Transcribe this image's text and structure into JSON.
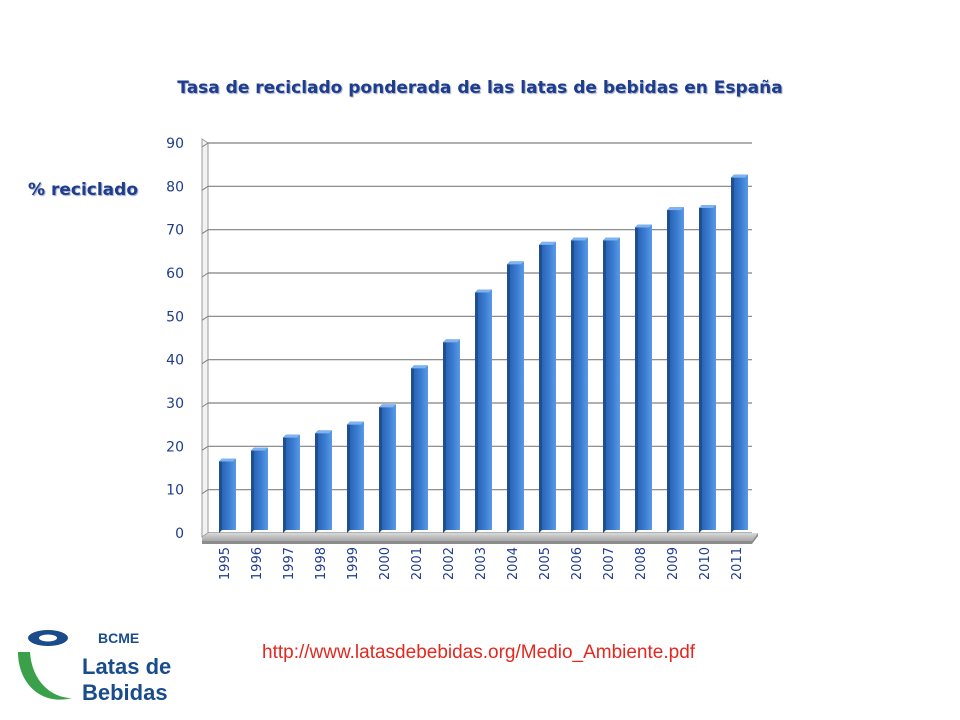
{
  "chart_data": {
    "type": "bar",
    "title": "Tasa de reciclado ponderada de las latas de bebidas en España",
    "ylabel": "% reciclado",
    "xlabel": "",
    "categories": [
      "1995",
      "1996",
      "1997",
      "1998",
      "1999",
      "2000",
      "2001",
      "2002",
      "2003",
      "2004",
      "2005",
      "2006",
      "2007",
      "2008",
      "2009",
      "2010",
      "2011"
    ],
    "values": [
      16.5,
      19,
      22,
      23,
      25,
      29,
      38,
      44,
      55.5,
      62,
      66.5,
      67.5,
      67.5,
      70.5,
      74.5,
      75,
      82
    ],
    "ylim": [
      0,
      90
    ],
    "yticks": [
      0,
      10,
      20,
      30,
      40,
      50,
      60,
      70,
      80,
      90
    ],
    "grid": true,
    "colors": {
      "bar": "#3d7fd4",
      "bar_side": "#1d4f95",
      "grid": "#808080",
      "tick_text": "#1f3d8c",
      "title": "#1f3d8c"
    }
  },
  "source_url": "http://www.latasdebebidas.org/Medio_Ambiente.pdf",
  "logo": {
    "brand": "BCME",
    "line1": "Latas de",
    "line2": "Bebidas",
    "colors": {
      "blue": "#1a4c8c",
      "green": "#3aa14a"
    }
  }
}
